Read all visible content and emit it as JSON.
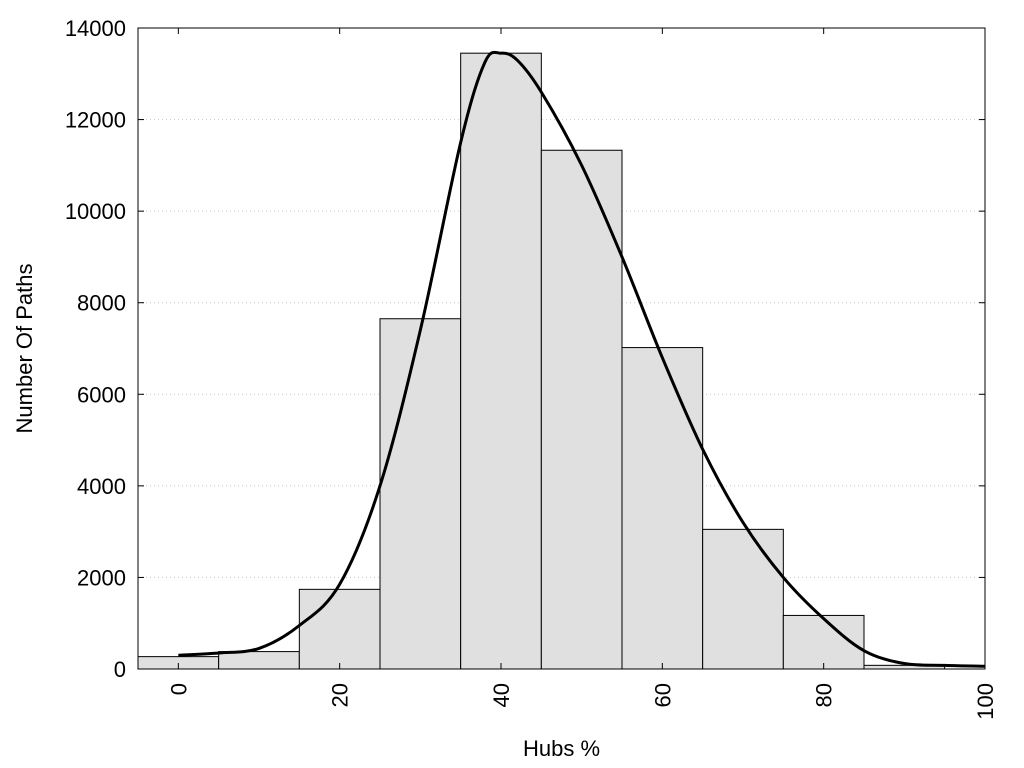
{
  "chart_data": {
    "type": "bar",
    "title": "",
    "xlabel": "Hubs %",
    "ylabel": "Number Of Paths",
    "xlim": [
      -5,
      100
    ],
    "ylim": [
      0,
      14000
    ],
    "grid": "horizontal dotted",
    "bin_width": 10,
    "x": [
      0,
      10,
      20,
      30,
      40,
      50,
      60,
      70,
      80,
      90
    ],
    "values": [
      270,
      380,
      1740,
      7650,
      13450,
      11330,
      7020,
      3050,
      1170,
      80
    ],
    "curve": {
      "x": [
        0,
        5,
        10,
        15,
        20,
        25,
        30,
        35,
        38,
        40,
        42,
        45,
        50,
        55,
        60,
        65,
        70,
        75,
        80,
        85,
        90,
        95,
        100
      ],
      "y": [
        300,
        350,
        450,
        950,
        1850,
        4000,
        7400,
        11500,
        13250,
        13450,
        13300,
        12600,
        11000,
        9000,
        6800,
        4800,
        3200,
        2000,
        1100,
        400,
        120,
        80,
        60
      ]
    },
    "xticks": [
      "0",
      "20",
      "40",
      "60",
      "80",
      "100"
    ],
    "xtick_values": [
      0,
      20,
      40,
      60,
      80,
      100
    ],
    "yticks": [
      "0",
      "2000",
      "4000",
      "6000",
      "8000",
      "10000",
      "12000",
      "14000"
    ],
    "ytick_values": [
      0,
      2000,
      4000,
      6000,
      8000,
      10000,
      12000,
      14000
    ],
    "bar_color": "#e0e0e0",
    "bar_stroke": "#000000",
    "curve_color": "#000000"
  }
}
